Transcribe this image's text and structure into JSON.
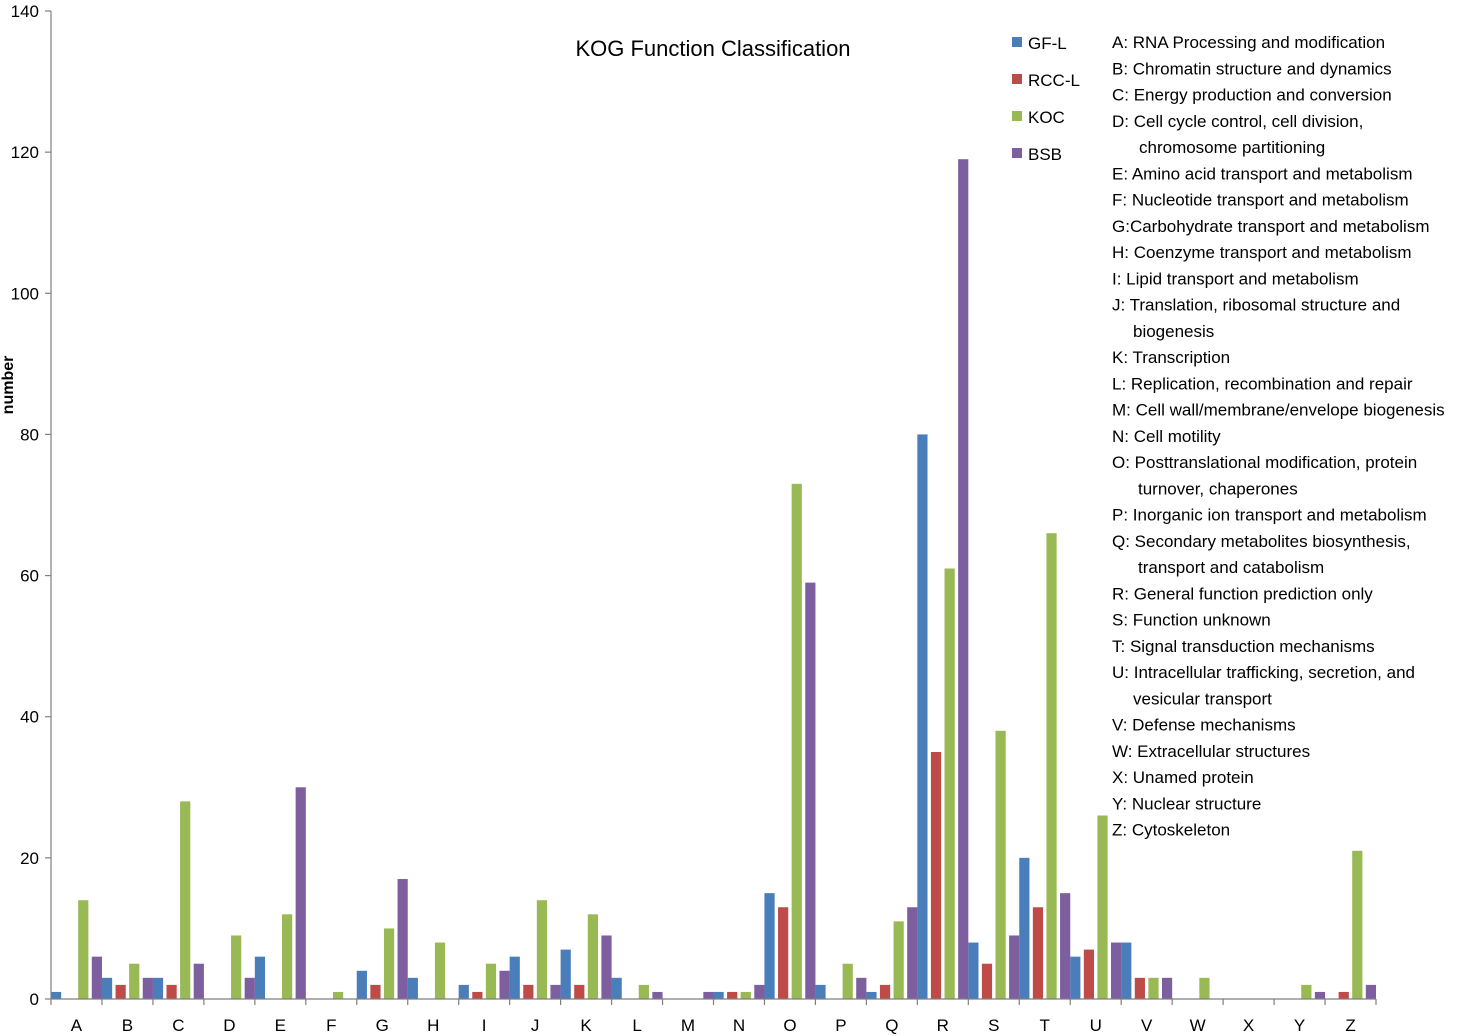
{
  "chart_data": {
    "type": "bar",
    "title": "KOG Function Classification",
    "xlabel": "",
    "ylabel": "number",
    "ylim": [
      0,
      140
    ],
    "yticks": [
      "0",
      "20",
      "40",
      "60",
      "80",
      "100",
      "120",
      "140"
    ],
    "categories": [
      "A",
      "B",
      "C",
      "D",
      "E",
      "F",
      "G",
      "H",
      "I",
      "J",
      "K",
      "L",
      "M",
      "N",
      "O",
      "P",
      "Q",
      "R",
      "S",
      "T",
      "U",
      "V",
      "W",
      "X",
      "Y",
      "Z"
    ],
    "series": [
      {
        "name": "GF-L",
        "color": "#4a7ebb",
        "values": [
          1,
          3,
          3,
          0,
          6,
          0,
          4,
          3,
          2,
          6,
          7,
          3,
          0,
          1,
          15,
          2,
          1,
          80,
          8,
          20,
          6,
          8,
          0,
          0,
          0,
          0
        ]
      },
      {
        "name": "RCC-L",
        "color": "#be4b48",
        "values": [
          0,
          2,
          2,
          0,
          0,
          0,
          2,
          0,
          1,
          2,
          2,
          0,
          0,
          1,
          13,
          0,
          2,
          35,
          5,
          13,
          7,
          3,
          0,
          0,
          0,
          1
        ]
      },
      {
        "name": "KOC",
        "color": "#98b954",
        "values": [
          14,
          5,
          28,
          9,
          12,
          1,
          10,
          8,
          5,
          14,
          12,
          2,
          0,
          1,
          73,
          5,
          11,
          61,
          38,
          66,
          26,
          3,
          3,
          0,
          2,
          21
        ]
      },
      {
        "name": "BSB",
        "color": "#7d5fa0",
        "values": [
          6,
          3,
          5,
          3,
          30,
          0,
          17,
          0,
          4,
          2,
          9,
          1,
          1,
          2,
          59,
          3,
          13,
          119,
          9,
          15,
          8,
          3,
          0,
          0,
          1,
          2
        ]
      }
    ],
    "grid": false,
    "legend_position": "top-right",
    "annotations": [
      "A: RNA Processing and modification",
      "B: Chromatin structure and dynamics",
      "C: Energy production and conversion",
      "D: Cell cycle control, cell division,",
      "chromosome partitioning",
      "E: Amino acid transport and metabolism",
      "F: Nucleotide transport and metabolism",
      "G:Carbohydrate transport and metabolism",
      "H: Coenzyme transport and metabolism",
      "I: Lipid transport and metabolism",
      "J: Translation, ribosomal structure and",
      "biogenesis",
      "K: Transcription",
      "L: Replication, recombination and repair",
      "M: Cell wall/membrane/envelope biogenesis",
      "N: Cell motility",
      "O: Posttranslational modification, protein",
      "turnover, chaperones",
      "P: Inorganic ion transport and metabolism",
      "Q: Secondary metabolites biosynthesis,",
      "transport and  catabolism",
      "R: General function prediction only",
      "S: Function unknown",
      "T: Signal transduction mechanisms",
      "U: Intracellular trafficking, secretion, and",
      "vesicular transport",
      "V: Defense mechanisms",
      "W: Extracellular structures",
      "X: Unamed protein",
      "Y: Nuclear structure",
      "Z: Cytoskeleton"
    ]
  }
}
